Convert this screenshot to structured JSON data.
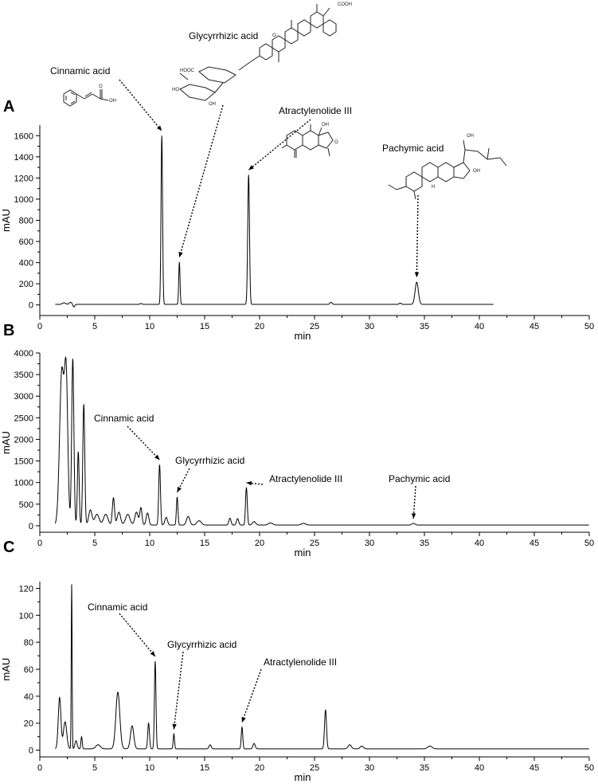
{
  "chart_data": [
    {
      "panel": "A",
      "type": "line",
      "xlabel": "min",
      "ylabel": "mAU",
      "xlim": [
        0,
        50
      ],
      "ylim": [
        -100,
        1700
      ],
      "xticks": [
        0,
        5,
        10,
        15,
        20,
        25,
        30,
        35,
        40,
        45,
        50
      ],
      "yticks": [
        0,
        200,
        400,
        600,
        800,
        1000,
        1200,
        1400,
        1600
      ],
      "x_end": 41.3,
      "baseline": 5,
      "peaks": [
        {
          "x": 2.2,
          "h": 15,
          "w": 0.15
        },
        {
          "x": 2.8,
          "h": 20,
          "w": 0.12
        },
        {
          "x": 3.1,
          "h": -25,
          "w": 0.08
        },
        {
          "x": 9.2,
          "h": 8,
          "w": 0.1
        },
        {
          "x": 11.1,
          "h": 1595,
          "w": 0.07
        },
        {
          "x": 12.7,
          "h": 400,
          "w": 0.06
        },
        {
          "x": 19.0,
          "h": 1225,
          "w": 0.08
        },
        {
          "x": 26.5,
          "h": 20,
          "w": 0.1
        },
        {
          "x": 32.8,
          "h": 12,
          "w": 0.1
        },
        {
          "x": 34.3,
          "h": 210,
          "w": 0.15
        }
      ],
      "annotations": [
        {
          "label": "Cinnamic acid",
          "peak_x": 11.1,
          "peak_y": 1595
        },
        {
          "label": "Glycyrrhizic acid",
          "peak_x": 12.7,
          "peak_y": 400
        },
        {
          "label": "Atractylenolide III",
          "peak_x": 19.0,
          "peak_y": 1225
        },
        {
          "label": "Pachymic acid",
          "peak_x": 34.3,
          "peak_y": 210
        }
      ],
      "structure_labels": {
        "cooh": "COOH",
        "oh": "OH",
        "h": "H",
        "o": "O",
        "hooc": "HOOC",
        "ho": "HO"
      }
    },
    {
      "panel": "B",
      "type": "line",
      "xlabel": "min",
      "ylabel": "mAU",
      "xlim": [
        0,
        50
      ],
      "ylim": [
        -150,
        4000
      ],
      "xticks": [
        0,
        5,
        10,
        15,
        20,
        25,
        30,
        35,
        40,
        45,
        50
      ],
      "yticks": [
        0,
        500,
        1000,
        1500,
        2000,
        2500,
        3000,
        3500,
        4000
      ],
      "x_end": 50,
      "baseline": 15,
      "peaks": [
        {
          "x": 2.0,
          "h": 3550,
          "w": 0.2
        },
        {
          "x": 2.4,
          "h": 3300,
          "w": 0.15
        },
        {
          "x": 3.0,
          "h": 3850,
          "w": 0.1
        },
        {
          "x": 3.5,
          "h": 1700,
          "w": 0.08
        },
        {
          "x": 4.0,
          "h": 2800,
          "w": 0.09
        },
        {
          "x": 4.6,
          "h": 350,
          "w": 0.15
        },
        {
          "x": 5.2,
          "h": 250,
          "w": 0.2
        },
        {
          "x": 6.0,
          "h": 250,
          "w": 0.2
        },
        {
          "x": 6.7,
          "h": 630,
          "w": 0.1
        },
        {
          "x": 7.2,
          "h": 300,
          "w": 0.15
        },
        {
          "x": 8.0,
          "h": 250,
          "w": 0.2
        },
        {
          "x": 8.8,
          "h": 300,
          "w": 0.15
        },
        {
          "x": 9.2,
          "h": 400,
          "w": 0.1
        },
        {
          "x": 9.8,
          "h": 280,
          "w": 0.12
        },
        {
          "x": 10.9,
          "h": 1400,
          "w": 0.08
        },
        {
          "x": 11.5,
          "h": 180,
          "w": 0.12
        },
        {
          "x": 12.5,
          "h": 650,
          "w": 0.07
        },
        {
          "x": 13.5,
          "h": 200,
          "w": 0.15
        },
        {
          "x": 14.5,
          "h": 100,
          "w": 0.2
        },
        {
          "x": 17.3,
          "h": 160,
          "w": 0.1
        },
        {
          "x": 18.0,
          "h": 150,
          "w": 0.1
        },
        {
          "x": 18.8,
          "h": 870,
          "w": 0.08
        },
        {
          "x": 19.5,
          "h": 80,
          "w": 0.15
        },
        {
          "x": 21.0,
          "h": 50,
          "w": 0.2
        },
        {
          "x": 24.0,
          "h": 40,
          "w": 0.2
        },
        {
          "x": 34.0,
          "h": 40,
          "w": 0.15
        }
      ],
      "annotations": [
        {
          "label": "Cinnamic acid",
          "peak_x": 10.9,
          "peak_y": 1400
        },
        {
          "label": "Glycyrrhizic acid",
          "peak_x": 12.5,
          "peak_y": 650
        },
        {
          "label": "Atractylenolide III",
          "peak_x": 18.8,
          "peak_y": 870
        },
        {
          "label": "Pachymic acid",
          "peak_x": 34.0,
          "peak_y": 40
        }
      ]
    },
    {
      "panel": "C",
      "type": "line",
      "xlabel": "min",
      "ylabel": "mAU",
      "xlim": [
        0,
        50
      ],
      "ylim": [
        -5,
        125
      ],
      "xticks": [
        0,
        5,
        10,
        15,
        20,
        25,
        30,
        35,
        40,
        45,
        50
      ],
      "yticks": [
        0,
        20,
        40,
        60,
        80,
        100,
        120
      ],
      "x_end": 50,
      "baseline": 1,
      "peaks": [
        {
          "x": 1.8,
          "h": 38,
          "w": 0.12
        },
        {
          "x": 2.3,
          "h": 20,
          "w": 0.15
        },
        {
          "x": 2.9,
          "h": 122,
          "w": 0.04
        },
        {
          "x": 3.3,
          "h": 6,
          "w": 0.1
        },
        {
          "x": 3.8,
          "h": 9,
          "w": 0.06
        },
        {
          "x": 5.3,
          "h": 3,
          "w": 0.2
        },
        {
          "x": 7.1,
          "h": 42,
          "w": 0.18
        },
        {
          "x": 8.4,
          "h": 17,
          "w": 0.15
        },
        {
          "x": 9.9,
          "h": 19,
          "w": 0.08
        },
        {
          "x": 10.5,
          "h": 65,
          "w": 0.07
        },
        {
          "x": 12.2,
          "h": 11,
          "w": 0.06
        },
        {
          "x": 15.5,
          "h": 3,
          "w": 0.1
        },
        {
          "x": 18.4,
          "h": 16,
          "w": 0.07
        },
        {
          "x": 19.5,
          "h": 4,
          "w": 0.1
        },
        {
          "x": 26.0,
          "h": 29,
          "w": 0.09
        },
        {
          "x": 28.2,
          "h": 3,
          "w": 0.15
        },
        {
          "x": 29.3,
          "h": 2,
          "w": 0.15
        },
        {
          "x": 35.5,
          "h": 2,
          "w": 0.2
        }
      ],
      "annotations": [
        {
          "label": "Cinnamic acid",
          "peak_x": 10.5,
          "peak_y": 65
        },
        {
          "label": "Glycyrrhizic acid",
          "peak_x": 12.2,
          "peak_y": 11
        },
        {
          "label": "Atractylenolide III",
          "peak_x": 18.4,
          "peak_y": 16
        }
      ]
    }
  ]
}
